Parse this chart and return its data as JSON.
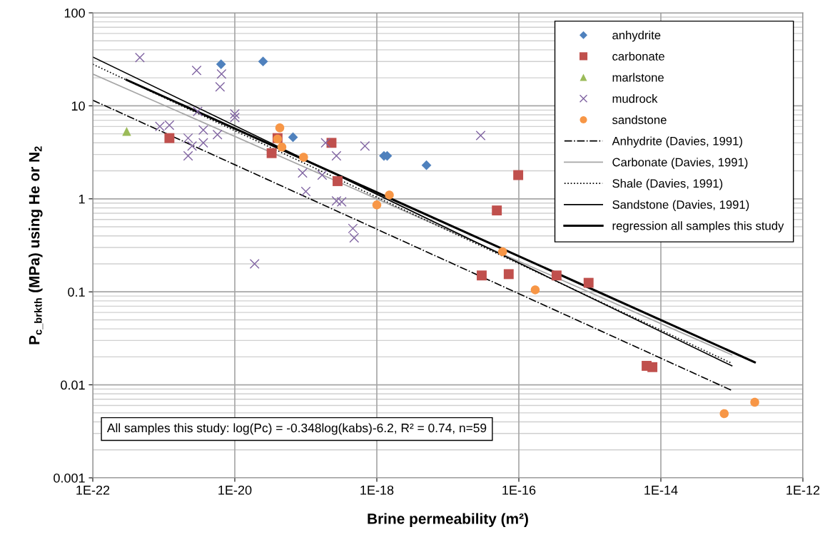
{
  "chart_data": {
    "type": "scatter",
    "xlabel": "Brine permeability (m²)",
    "ylabel": "P$_{c_brkth}$ (MPa) using He or N$_{2}$",
    "log": "xy",
    "grid": true,
    "legend": "top right",
    "xlim": [
      1e-22,
      1e-12
    ],
    "xticks": [
      {
        "value": 1e-22,
        "label": "1E-22"
      },
      {
        "value": 1e-20,
        "label": "1E-20"
      },
      {
        "value": 1e-18,
        "label": "1E-18"
      },
      {
        "value": 1e-16,
        "label": "1E-16"
      },
      {
        "value": 1e-14,
        "label": "1E-14"
      },
      {
        "value": 1e-12,
        "label": "1E-12"
      }
    ],
    "ylim": [
      0.001,
      100
    ],
    "yticks": [
      0.001,
      0.01,
      0.1,
      1,
      10,
      100
    ],
    "annotations": [
      "All samples this study: log(Pc) = -0.348log(kabs)-6.2, R² = 0.74, n=59"
    ],
    "series": [
      {
        "name": "anhydrite",
        "type": "scatter",
        "marker": "diamond",
        "color": "#4f81bd",
        "x": [
          6.4e-21,
          2.5e-20,
          6.6e-20,
          1.26e-18,
          1.4e-18,
          5e-18
        ],
        "values": [
          28,
          30,
          4.6,
          2.9,
          2.9,
          2.3
        ]
      },
      {
        "name": "carbonate",
        "type": "scatter",
        "marker": "square",
        "color": "#c0504d",
        "x": [
          1.2e-21,
          3.3e-20,
          4e-20,
          2.3e-19,
          2.8e-19,
          4.9e-17,
          9.8e-17,
          3e-17,
          7.2e-17,
          3.4e-16,
          9.6e-16,
          6.3e-15,
          7.6e-15
        ],
        "values": [
          4.5,
          3.1,
          4.5,
          4.0,
          1.55,
          0.75,
          1.8,
          0.15,
          0.155,
          0.15,
          0.125,
          0.016,
          0.0155
        ]
      },
      {
        "name": "marlstone",
        "type": "scatter",
        "marker": "triangle",
        "color": "#9bbb59",
        "x": [
          3e-22
        ],
        "values": [
          5.3
        ]
      },
      {
        "name": "mudrock",
        "type": "scatter",
        "marker": "cross",
        "color": "#8064a2",
        "x": [
          4.6e-22,
          2.9e-21,
          6.5e-21,
          6.2e-21,
          3e-21,
          1e-20,
          1e-20,
          8.8e-22,
          1.2e-21,
          2.2e-21,
          3.6e-21,
          3.6e-21,
          2.5e-21,
          2.2e-21,
          5.7e-21,
          1.9e-20,
          1.9e-19,
          2.7e-19,
          6.8e-19,
          9e-20,
          1.7e-19,
          1e-19,
          2.7e-19,
          3.2e-19,
          4.6e-19,
          4.8e-19,
          2.9e-17
        ],
        "values": [
          33,
          24,
          22,
          16,
          8.7,
          7.5,
          8.2,
          6.0,
          6.2,
          4.5,
          5.5,
          4.0,
          3.7,
          2.9,
          4.9,
          0.2,
          4.0,
          2.9,
          3.7,
          1.9,
          1.8,
          1.2,
          0.95,
          0.93,
          0.48,
          0.38,
          4.8
        ]
      },
      {
        "name": "sandstone",
        "type": "scatter",
        "marker": "circle",
        "color": "#f79646",
        "x": [
          4.3e-20,
          4e-20,
          4.6e-20,
          9.3e-20,
          1.5e-18,
          1e-18,
          5.9e-17,
          1.7e-16,
          7.8e-14,
          2.1e-13
        ],
        "values": [
          5.8,
          4.4,
          3.6,
          2.8,
          1.1,
          0.86,
          0.27,
          0.105,
          0.0049,
          0.0065
        ]
      },
      {
        "name": "Anhydrite (Davies, 1991)",
        "type": "line",
        "line_style": "dashdot",
        "color": "#000000",
        "x": [
          1e-22,
          1e-13
        ],
        "values": [
          11.5,
          0.0087
        ]
      },
      {
        "name": "Carbonate (Davies, 1991)",
        "type": "line",
        "line_style": "solid",
        "color": "#a6a6a6",
        "x": [
          1e-22,
          1e-13
        ],
        "values": [
          22,
          0.021
        ]
      },
      {
        "name": "Shale (Davies, 1991)",
        "type": "line",
        "line_style": "dotted",
        "color": "#000000",
        "x": [
          1e-22,
          1e-13
        ],
        "values": [
          28,
          0.017
        ]
      },
      {
        "name": "Sandstone (Davies, 1991)",
        "type": "line",
        "line_style": "solid",
        "color": "#000000",
        "x": [
          1e-22,
          1e-13
        ],
        "values": [
          33.5,
          0.016
        ]
      },
      {
        "name": "regression all samples this study",
        "type": "line",
        "line_style": "solid",
        "color": "#000000",
        "x": [
          3e-22,
          2.1e-13
        ],
        "values": [
          19,
          0.0175
        ]
      }
    ]
  }
}
